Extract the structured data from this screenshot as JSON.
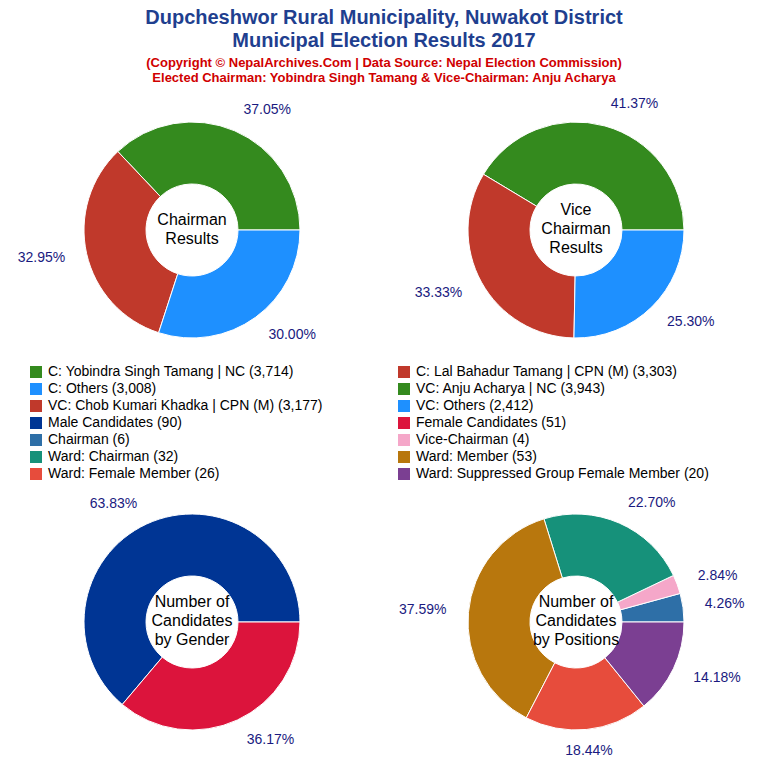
{
  "header": {
    "title": [
      "Dupcheshwor Rural Municipality, Nuwakot District",
      "Municipal Election Results 2017"
    ],
    "subtitle": [
      "(Copyright © NepalArchives.Com | Data Source: Nepal Election Commission)",
      "Elected Chairman: Yobindra Singh Tamang & Vice-Chairman: Anju Acharya"
    ]
  },
  "chart_data": [
    {
      "type": "pie",
      "title": [
        "Chairman",
        "Results"
      ],
      "categories": [
        "C: Yobindra Singh Tamang | NC (3,714)",
        "C: Lal Bahadur Tamang | CPN (M) (3,303)",
        "C: Others (3,008)"
      ],
      "values": [
        37.05,
        32.95,
        30.0
      ],
      "value_labels": [
        "37.05%",
        "32.95%",
        "30.00%"
      ],
      "colors": [
        "#348a1e",
        "#c0392b",
        "#1e90ff"
      ],
      "data_labels": true
    },
    {
      "type": "pie",
      "title": [
        "Vice",
        "Chairman",
        "Results"
      ],
      "categories": [
        "VC: Anju Acharya | NC (3,943)",
        "VC: Chob Kumari Khadka | CPN (M) (3,177)",
        "VC: Others (2,412)"
      ],
      "values": [
        41.37,
        33.33,
        25.3
      ],
      "value_labels": [
        "41.37%",
        "33.33%",
        "25.30%"
      ],
      "colors": [
        "#348a1e",
        "#c0392b",
        "#1e90ff"
      ],
      "data_labels": true
    },
    {
      "type": "pie",
      "title": [
        "Number of",
        "Candidates",
        "by Gender"
      ],
      "categories": [
        "Male Candidates (90)",
        "Female Candidates (51)"
      ],
      "values": [
        63.83,
        36.17
      ],
      "value_labels": [
        "63.83%",
        "36.17%"
      ],
      "colors": [
        "#003594",
        "#dc143c"
      ],
      "data_labels": true
    },
    {
      "type": "pie",
      "title": [
        "Number of",
        "Candidates",
        "by Positions"
      ],
      "categories": [
        "Chairman (6)",
        "Vice-Chairman (4)",
        "Ward: Chairman (32)",
        "Ward: Member (53)",
        "Ward: Female Member (26)",
        "Ward: Suppressed Group Female Member (20)"
      ],
      "values": [
        4.26,
        2.84,
        22.7,
        37.59,
        18.44,
        14.18
      ],
      "value_labels": [
        "4.26%",
        "2.84%",
        "22.70%",
        "37.59%",
        "18.44%",
        "14.18%"
      ],
      "colors": [
        "#2e6fa7",
        "#f5a7c9",
        "#16917a",
        "#b8770d",
        "#e74c3c",
        "#7b3f92"
      ],
      "data_labels": true
    }
  ]
}
